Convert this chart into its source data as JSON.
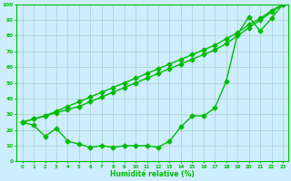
{
  "title": "",
  "xlabel": "Humidité relative (%)",
  "ylabel": "",
  "background_color": "#cceeff",
  "grid_color": "#aacccc",
  "line_color": "#00bb00",
  "xlim": [
    -0.5,
    23.5
  ],
  "ylim": [
    0,
    100
  ],
  "xtick_labels": [
    "0",
    "1",
    "2",
    "3",
    "4",
    "5",
    "6",
    "7",
    "8",
    "9",
    "10",
    "11",
    "12",
    "13",
    "14",
    "15",
    "16",
    "17",
    "18",
    "19",
    "20",
    "21",
    "22",
    "23"
  ],
  "ytick_labels": [
    "0",
    "10",
    "20",
    "30",
    "40",
    "50",
    "60",
    "70",
    "80",
    "90",
    "100"
  ],
  "line_straight1": [
    25,
    27,
    29,
    31,
    33,
    35,
    38,
    41,
    44,
    47,
    50,
    53,
    56,
    59,
    62,
    65,
    68,
    71,
    75,
    80,
    85,
    90,
    95,
    100
  ],
  "line_straight2": [
    25,
    27,
    29,
    32,
    35,
    38,
    41,
    44,
    47,
    50,
    53,
    56,
    59,
    62,
    65,
    68,
    71,
    74,
    78,
    82,
    87,
    91,
    96,
    100
  ],
  "line_curve": [
    25,
    23,
    16,
    21,
    13,
    11,
    9,
    10,
    9,
    10,
    10,
    10,
    9,
    13,
    22,
    29,
    29,
    34,
    51,
    81,
    92,
    83,
    91,
    100
  ],
  "marker": "D",
  "markersize": 2.5,
  "linewidth": 1.0
}
